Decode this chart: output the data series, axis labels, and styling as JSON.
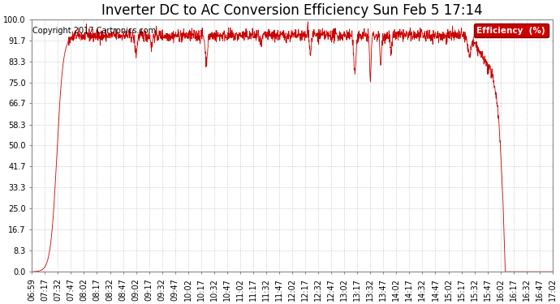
{
  "title": "Inverter DC to AC Conversion Efficiency Sun Feb 5 17:14",
  "copyright": "Copyright 2017 Cartronics.com",
  "legend_label": "Efficiency  (%)",
  "legend_bg": "#cc0000",
  "legend_fg": "#ffffff",
  "line_color": "#cc0000",
  "bg_color": "#ffffff",
  "plot_bg_color": "#ffffff",
  "grid_color": "#bbbbbb",
  "ylim": [
    0.0,
    100.0
  ],
  "yticks": [
    0.0,
    8.3,
    16.7,
    25.0,
    33.3,
    41.7,
    50.0,
    58.3,
    66.7,
    75.0,
    83.3,
    91.7,
    100.0
  ],
  "title_fontsize": 12,
  "copyright_fontsize": 7,
  "tick_fontsize": 7,
  "xtick_labels": [
    "06:59",
    "07:17",
    "07:32",
    "07:47",
    "08:02",
    "08:17",
    "08:32",
    "08:47",
    "09:02",
    "09:17",
    "09:32",
    "09:47",
    "10:02",
    "10:17",
    "10:32",
    "10:47",
    "11:02",
    "11:17",
    "11:32",
    "11:47",
    "12:02",
    "12:17",
    "12:32",
    "12:47",
    "13:02",
    "13:17",
    "13:32",
    "13:47",
    "14:02",
    "14:17",
    "14:32",
    "14:47",
    "15:02",
    "15:17",
    "15:32",
    "15:47",
    "16:02",
    "16:17",
    "16:32",
    "16:47",
    "17:02"
  ]
}
